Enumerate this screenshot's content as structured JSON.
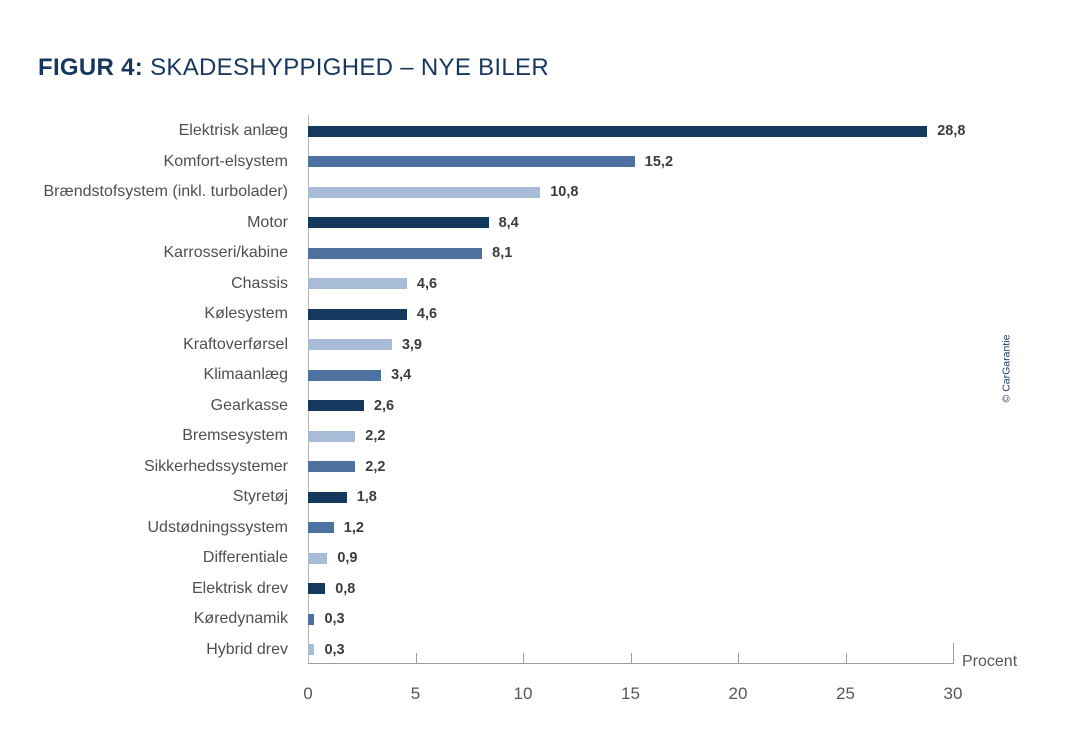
{
  "title": {
    "prefix": "FIGUR 4:",
    "text": "SKADESHYPPIGHED – NYE BILER"
  },
  "watermark": "© CarGarantie",
  "colors": {
    "dark": "#14395e",
    "medium": "#4d72a0",
    "light": "#a8bcd8",
    "title_color": "#17375e",
    "axis_color": "#9d9d9c",
    "tick_label_color": "#575756",
    "category_label_color": "#4f4f4e",
    "value_label_color": "#3c3c3b"
  },
  "chart_data": {
    "type": "bar",
    "orientation": "horizontal",
    "title": "FIGUR 4: SKADESHYPPIGHED – NYE BILER",
    "xlabel": "Procent",
    "ylabel": "",
    "xlim": [
      0,
      30
    ],
    "xticks": [
      0,
      5,
      10,
      15,
      20,
      25,
      30
    ],
    "grid": "baseline-only",
    "legend": "none",
    "rows": [
      {
        "label": "Elektrisk anlæg",
        "value": 28.8,
        "display": "28,8",
        "color": "dark"
      },
      {
        "label": "Komfort-elsystem",
        "value": 15.2,
        "display": "15,2",
        "color": "medium"
      },
      {
        "label": "Brændstofsystem (inkl. turbolader)",
        "value": 10.8,
        "display": "10,8",
        "color": "light"
      },
      {
        "label": "Motor",
        "value": 8.4,
        "display": "8,4",
        "color": "dark"
      },
      {
        "label": "Karrosseri/kabine",
        "value": 8.1,
        "display": "8,1",
        "color": "medium"
      },
      {
        "label": "Chassis",
        "value": 4.6,
        "display": "4,6",
        "color": "light"
      },
      {
        "label": "Kølesystem",
        "value": 4.6,
        "display": "4,6",
        "color": "dark"
      },
      {
        "label": "Kraftoverførsel",
        "value": 3.9,
        "display": "3,9",
        "color": "light"
      },
      {
        "label": "Klimaanlæg",
        "value": 3.4,
        "display": "3,4",
        "color": "medium"
      },
      {
        "label": "Gearkasse",
        "value": 2.6,
        "display": "2,6",
        "color": "dark"
      },
      {
        "label": "Bremsesystem",
        "value": 2.2,
        "display": "2,2",
        "color": "light"
      },
      {
        "label": "Sikkerhedssystemer",
        "value": 2.2,
        "display": "2,2",
        "color": "medium"
      },
      {
        "label": "Styretøj",
        "value": 1.8,
        "display": "1,8",
        "color": "dark"
      },
      {
        "label": "Udstødningssystem",
        "value": 1.2,
        "display": "1,2",
        "color": "medium"
      },
      {
        "label": "Differentiale",
        "value": 0.9,
        "display": "0,9",
        "color": "light"
      },
      {
        "label": "Elektrisk drev",
        "value": 0.8,
        "display": "0,8",
        "color": "dark"
      },
      {
        "label": "Køredynamik",
        "value": 0.3,
        "display": "0,3",
        "color": "medium"
      },
      {
        "label": "Hybrid drev",
        "value": 0.3,
        "display": "0,3",
        "color": "light"
      }
    ]
  }
}
